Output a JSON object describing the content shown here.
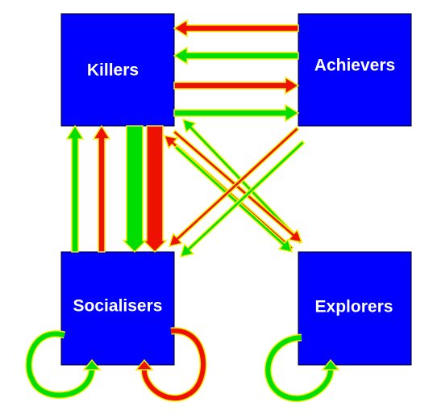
{
  "colors": {
    "box": "#0000ff",
    "positive": "#00dd00",
    "negative": "#ee1100",
    "outline": "#f0f000",
    "text": "#ffffff"
  },
  "boxes": {
    "killers": {
      "label": "Killers"
    },
    "achievers": {
      "label": "Achievers"
    },
    "socialisers": {
      "label": "Socialisers"
    },
    "explorers": {
      "label": "Explorers"
    }
  }
}
